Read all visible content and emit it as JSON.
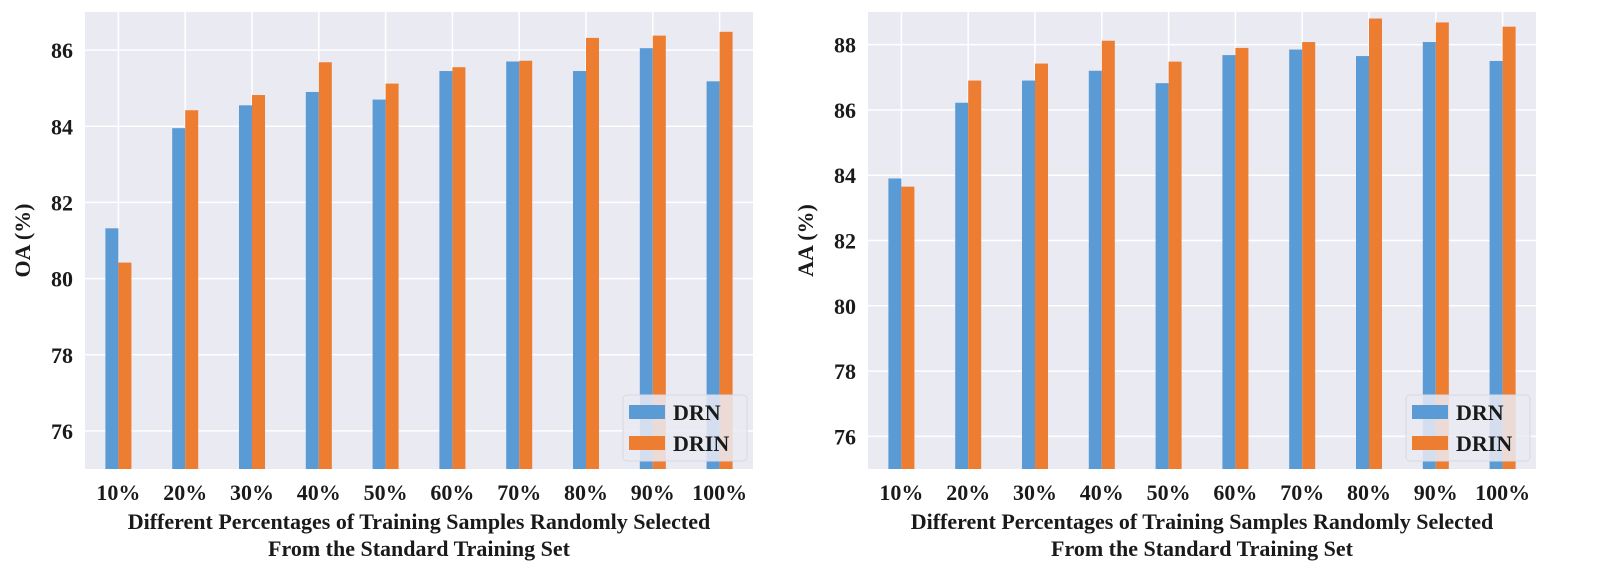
{
  "chart_data": [
    {
      "type": "bar",
      "id": "oa",
      "categories": [
        "10%",
        "20%",
        "30%",
        "40%",
        "50%",
        "60%",
        "70%",
        "80%",
        "90%",
        "100%"
      ],
      "series": [
        {
          "name": "DRN",
          "color": "#5b9bd5",
          "values": [
            81.32,
            83.95,
            84.55,
            84.9,
            84.7,
            85.45,
            85.7,
            85.45,
            86.05,
            85.18
          ]
        },
        {
          "name": "DRIN",
          "color": "#ed7d31",
          "values": [
            80.42,
            84.42,
            84.82,
            85.68,
            85.12,
            85.55,
            85.72,
            86.32,
            86.38,
            86.48
          ]
        }
      ],
      "ylabel": "OA (%)",
      "xlabel_lines": [
        "Different Percentages of Training Samples Randomly Selected",
        "From the Standard Training Set"
      ],
      "ylim": [
        75.0,
        87.0
      ],
      "yticks": [
        76,
        78,
        80,
        82,
        84,
        86
      ],
      "legend_position": "bottom-right",
      "grid": true
    },
    {
      "type": "bar",
      "id": "aa",
      "categories": [
        "10%",
        "20%",
        "30%",
        "40%",
        "50%",
        "60%",
        "70%",
        "80%",
        "90%",
        "100%"
      ],
      "series": [
        {
          "name": "DRN",
          "color": "#5b9bd5",
          "values": [
            83.9,
            86.22,
            86.9,
            87.2,
            86.82,
            87.68,
            87.85,
            87.65,
            88.08,
            87.5
          ]
        },
        {
          "name": "DRIN",
          "color": "#ed7d31",
          "values": [
            83.65,
            86.9,
            87.42,
            88.12,
            87.48,
            87.9,
            88.08,
            88.8,
            88.68,
            88.55
          ]
        }
      ],
      "ylabel": "AA (%)",
      "xlabel_lines": [
        "Different Percentages of Training Samples Randomly Selected",
        "From the Standard Training Set"
      ],
      "ylim": [
        75.0,
        89.0
      ],
      "yticks": [
        76,
        78,
        80,
        82,
        84,
        86,
        88
      ],
      "legend_position": "bottom-right",
      "grid": true
    }
  ],
  "style": {
    "plot_background": "#eaeaf2",
    "grid_color": "#ffffff"
  }
}
